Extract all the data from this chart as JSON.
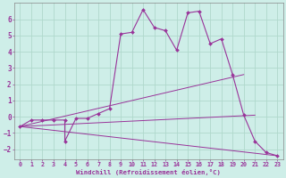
{
  "xlabel": "Windchill (Refroidissement éolien,°C)",
  "bg_color": "#ceeee8",
  "grid_color": "#b0d8cc",
  "line_color": "#993399",
  "xlim": [
    -0.5,
    23.5
  ],
  "ylim": [
    -2.6,
    7.0
  ],
  "yticks": [
    -2,
    -1,
    0,
    1,
    2,
    3,
    4,
    5,
    6
  ],
  "xticks": [
    0,
    1,
    2,
    3,
    4,
    5,
    6,
    7,
    8,
    9,
    10,
    11,
    12,
    13,
    14,
    15,
    16,
    17,
    18,
    19,
    20,
    21,
    22,
    23
  ],
  "main_x": [
    0,
    1,
    2,
    3,
    4,
    4,
    5,
    6,
    7,
    8,
    9,
    10,
    11,
    12,
    13,
    14,
    15,
    16,
    17,
    18,
    19,
    20,
    21,
    22,
    23
  ],
  "main_y": [
    -0.6,
    -0.2,
    -0.2,
    -0.2,
    -0.2,
    -1.5,
    -0.1,
    -0.1,
    0.2,
    0.5,
    5.1,
    5.2,
    6.6,
    5.5,
    5.3,
    4.1,
    6.4,
    6.5,
    4.5,
    4.8,
    2.6,
    0.1,
    -1.5,
    -2.2,
    -2.4
  ],
  "trend1_x": [
    0,
    20
  ],
  "trend1_y": [
    -0.6,
    2.6
  ],
  "trend2_x": [
    0,
    21
  ],
  "trend2_y": [
    -0.6,
    0.1
  ],
  "trend3_x": [
    0,
    23
  ],
  "trend3_y": [
    -0.6,
    -2.4
  ]
}
